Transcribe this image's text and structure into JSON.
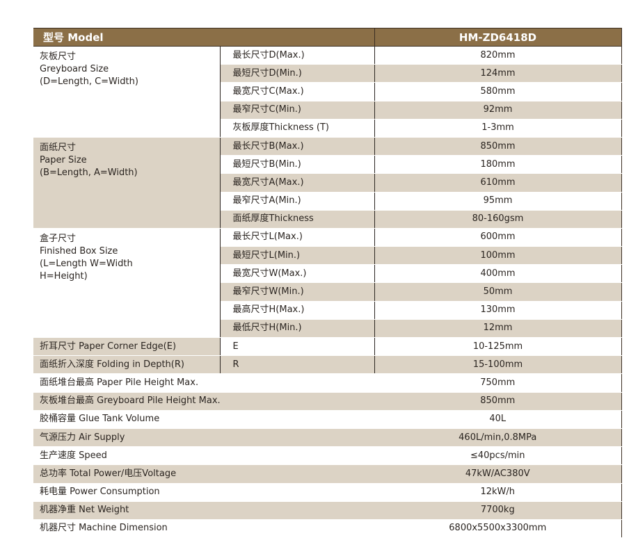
{
  "header": {
    "label": "型号 Model",
    "model": "HM-ZD6418D"
  },
  "groups": [
    {
      "lines": [
        "灰板尺寸",
        "Greyboard Size",
        "(D=Length, C=Width)"
      ],
      "rows": [
        [
          "最长尺寸D(Max.)",
          "820mm"
        ],
        [
          "最短尺寸D(Min.)",
          "124mm"
        ],
        [
          "最宽尺寸C(Max.)",
          "580mm"
        ],
        [
          "最窄尺寸C(Min.)",
          "92mm"
        ],
        [
          "灰板厚度Thickness (T)",
          "1-3mm"
        ]
      ]
    },
    {
      "lines": [
        "面纸尺寸",
        "Paper Size",
        "(B=Length, A=Width)"
      ],
      "rows": [
        [
          "最长尺寸B(Max.)",
          "850mm"
        ],
        [
          "最短尺寸B(Min.)",
          "180mm"
        ],
        [
          "最宽尺寸A(Max.)",
          "610mm"
        ],
        [
          "最窄尺寸A(Min.)",
          "95mm"
        ],
        [
          "面纸厚度Thickness",
          "80-160gsm"
        ]
      ]
    },
    {
      "lines": [
        "盒子尺寸",
        "Finished Box Size",
        "(L=Length  W=Width",
        "H=Height)"
      ],
      "rows": [
        [
          "最长尺寸L(Max.)",
          "600mm"
        ],
        [
          "最短尺寸L(Min.)",
          "100mm"
        ],
        [
          "最宽尺寸W(Max.)",
          "400mm"
        ],
        [
          "最窄尺寸W(Min.)",
          "50mm"
        ],
        [
          "最高尺寸H(Max.)",
          "130mm"
        ],
        [
          "最低尺寸H(Min.)",
          "12mm"
        ]
      ]
    }
  ],
  "split_rows": [
    [
      "折耳尺寸 Paper Corner Edge(E)",
      "E",
      "10-125mm"
    ],
    [
      "面纸折入深度 Folding in Depth(R)",
      "R",
      "15-100mm"
    ]
  ],
  "full_rows": [
    [
      "面纸堆台最高 Paper Pile Height Max.",
      "750mm"
    ],
    [
      "灰板堆台最高 Greyboard Pile Height Max.",
      "850mm"
    ],
    [
      "胶桶容量 Glue Tank Volume",
      "40L"
    ],
    [
      "气源压力 Air Supply",
      "460L/min,0.8MPa"
    ],
    [
      "生产速度 Speed",
      "≤40pcs/min"
    ],
    [
      "总功率 Total Power/电压Voltage",
      "47kW/AC380V"
    ],
    [
      "耗电量 Power Consumption",
      "12kW/h"
    ],
    [
      "机器净重 Net Weight",
      "7700kg"
    ],
    [
      "机器尺寸 Machine Dimension",
      "6800x5500x3300mm"
    ]
  ],
  "colors": {
    "header": "#8b6f47",
    "shaded": "#dcd3c5"
  }
}
